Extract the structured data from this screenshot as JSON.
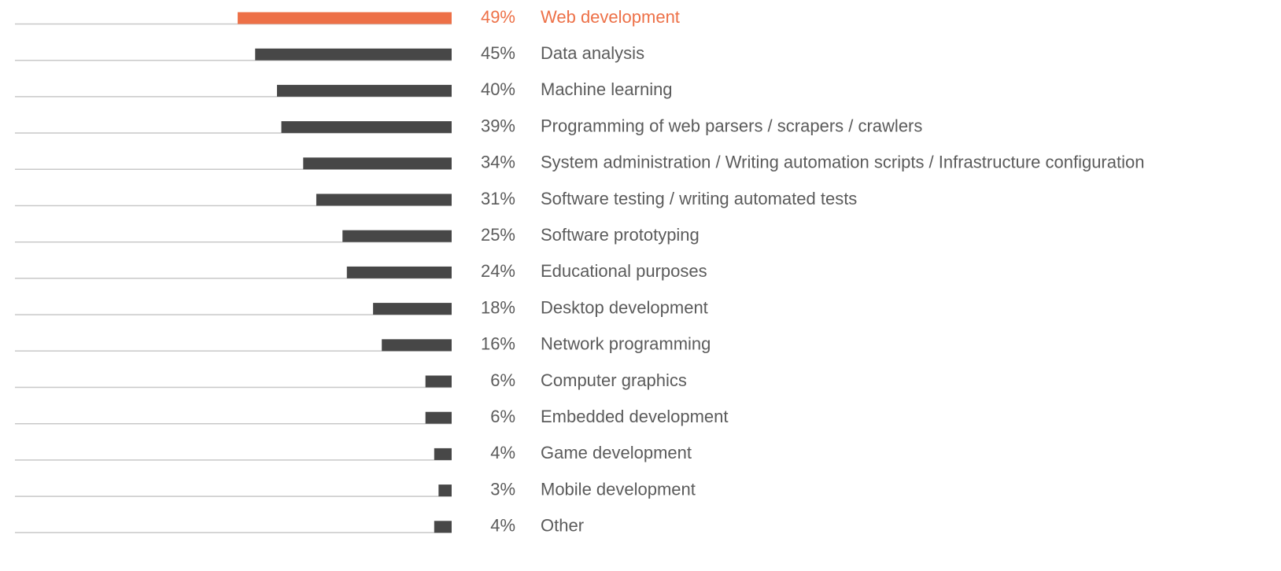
{
  "chart_data": {
    "type": "hbar",
    "categories": [
      "Web development",
      "Data analysis",
      "Machine learning",
      "Programming of web parsers / scrapers / crawlers",
      "System administration / Writing automation scripts / Infrastructure configuration",
      "Software testing / writing automated tests",
      "Software prototyping",
      "Educational purposes",
      "Desktop development",
      "Network programming",
      "Computer graphics",
      "Embedded development",
      "Game development",
      "Mobile development",
      "Other"
    ],
    "values": [
      49,
      45,
      40,
      39,
      34,
      31,
      25,
      24,
      18,
      16,
      6,
      6,
      4,
      3,
      4
    ],
    "value_labels": [
      "49%",
      "45%",
      "40%",
      "39%",
      "34%",
      "31%",
      "25%",
      "24%",
      "18%",
      "16%",
      "6%",
      "6%",
      "4%",
      "3%",
      "4%"
    ],
    "colors": [
      "#ed7047",
      "#474747",
      "#474747",
      "#474747",
      "#474747",
      "#474747",
      "#474747",
      "#474747",
      "#474747",
      "#474747",
      "#474747",
      "#474747",
      "#474747",
      "#474747",
      "#474747"
    ],
    "label_colors": [
      "#ed7047",
      "#5b5b5b",
      "#5b5b5b",
      "#5b5b5b",
      "#5b5b5b",
      "#5b5b5b",
      "#5b5b5b",
      "#5b5b5b",
      "#5b5b5b",
      "#5b5b5b",
      "#5b5b5b",
      "#5b5b5b",
      "#5b5b5b",
      "#5b5b5b",
      "#5b5b5b"
    ],
    "xlim": [
      0,
      100
    ]
  }
}
